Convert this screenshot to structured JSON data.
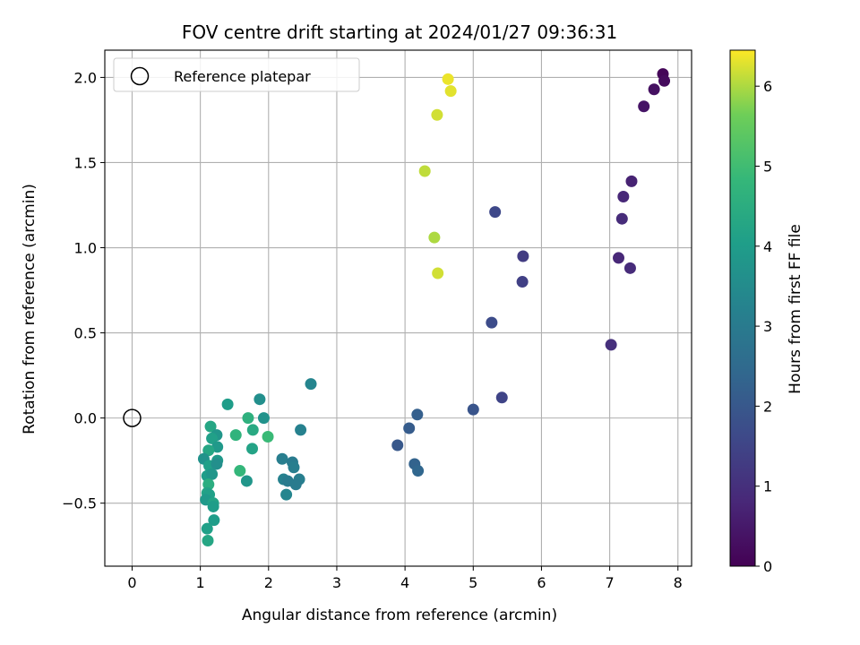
{
  "chart_data": {
    "type": "scatter",
    "title": "FOV centre drift starting at 2024/01/27 09:36:31",
    "xlabel": "Angular distance from reference (arcmin)",
    "ylabel": "Rotation from reference (arcmin)",
    "xlim": [
      -0.4,
      8.2
    ],
    "ylim": [
      -0.87,
      2.16
    ],
    "xticks": [
      0,
      1,
      2,
      3,
      4,
      5,
      6,
      7,
      8
    ],
    "xtick_labels": [
      "0",
      "1",
      "2",
      "3",
      "4",
      "5",
      "6",
      "7",
      "8"
    ],
    "yticks": [
      -0.5,
      0.0,
      0.5,
      1.0,
      1.5,
      2.0
    ],
    "ytick_labels": [
      "−0.5",
      "0.0",
      "0.5",
      "1.0",
      "1.5",
      "2.0"
    ],
    "grid": true,
    "colormap": "viridis",
    "colorbar": {
      "label": "Hours from first FF file",
      "range": [
        0,
        6.45
      ],
      "ticks": [
        0,
        1,
        2,
        3,
        4,
        5,
        6
      ],
      "tick_labels": [
        "0",
        "1",
        "2",
        "3",
        "4",
        "5",
        "6"
      ]
    },
    "legend": {
      "position": "upper-left",
      "entries": [
        "Reference platepar"
      ]
    },
    "reference_point": {
      "x": 0,
      "y": 0
    },
    "points": [
      {
        "x": 7.78,
        "y": 2.02,
        "c": 0.1
      },
      {
        "x": 7.8,
        "y": 1.98,
        "c": 0.2
      },
      {
        "x": 7.65,
        "y": 1.93,
        "c": 0.3
      },
      {
        "x": 7.5,
        "y": 1.83,
        "c": 0.4
      },
      {
        "x": 7.32,
        "y": 1.39,
        "c": 0.7
      },
      {
        "x": 7.2,
        "y": 1.3,
        "c": 0.8
      },
      {
        "x": 7.18,
        "y": 1.17,
        "c": 0.9
      },
      {
        "x": 7.13,
        "y": 0.94,
        "c": 0.8
      },
      {
        "x": 7.3,
        "y": 0.88,
        "c": 0.9
      },
      {
        "x": 7.02,
        "y": 0.43,
        "c": 1.0
      },
      {
        "x": 5.73,
        "y": 0.95,
        "c": 1.3
      },
      {
        "x": 5.72,
        "y": 0.8,
        "c": 1.4
      },
      {
        "x": 5.32,
        "y": 1.21,
        "c": 1.6
      },
      {
        "x": 5.27,
        "y": 0.56,
        "c": 1.7
      },
      {
        "x": 5.42,
        "y": 0.12,
        "c": 1.5
      },
      {
        "x": 5.0,
        "y": 0.05,
        "c": 1.9
      },
      {
        "x": 4.18,
        "y": 0.02,
        "c": 2.2
      },
      {
        "x": 4.06,
        "y": -0.06,
        "c": 2.1
      },
      {
        "x": 3.89,
        "y": -0.16,
        "c": 2.0
      },
      {
        "x": 4.14,
        "y": -0.27,
        "c": 2.3
      },
      {
        "x": 4.19,
        "y": -0.31,
        "c": 2.4
      },
      {
        "x": 2.62,
        "y": 0.2,
        "c": 3.3
      },
      {
        "x": 2.47,
        "y": -0.07,
        "c": 3.2
      },
      {
        "x": 2.2,
        "y": -0.24,
        "c": 3.1
      },
      {
        "x": 2.35,
        "y": -0.26,
        "c": 3.0
      },
      {
        "x": 2.37,
        "y": -0.29,
        "c": 3.1
      },
      {
        "x": 2.22,
        "y": -0.36,
        "c": 3.2
      },
      {
        "x": 2.28,
        "y": -0.37,
        "c": 3.0
      },
      {
        "x": 2.45,
        "y": -0.36,
        "c": 3.1
      },
      {
        "x": 2.4,
        "y": -0.39,
        "c": 3.0
      },
      {
        "x": 2.26,
        "y": -0.45,
        "c": 3.3
      },
      {
        "x": 1.87,
        "y": 0.11,
        "c": 3.6
      },
      {
        "x": 1.93,
        "y": 0.0,
        "c": 3.7
      },
      {
        "x": 1.4,
        "y": 0.08,
        "c": 4.0
      },
      {
        "x": 1.7,
        "y": 0.0,
        "c": 4.6
      },
      {
        "x": 1.77,
        "y": -0.07,
        "c": 4.4
      },
      {
        "x": 1.52,
        "y": -0.1,
        "c": 4.7
      },
      {
        "x": 1.99,
        "y": -0.11,
        "c": 4.9
      },
      {
        "x": 1.76,
        "y": -0.18,
        "c": 4.2
      },
      {
        "x": 1.68,
        "y": -0.37,
        "c": 3.8
      },
      {
        "x": 1.58,
        "y": -0.31,
        "c": 4.8
      },
      {
        "x": 1.15,
        "y": -0.05,
        "c": 4.3
      },
      {
        "x": 1.24,
        "y": -0.1,
        "c": 3.8
      },
      {
        "x": 1.17,
        "y": -0.12,
        "c": 4.1
      },
      {
        "x": 1.25,
        "y": -0.17,
        "c": 3.9
      },
      {
        "x": 1.12,
        "y": -0.19,
        "c": 4.3
      },
      {
        "x": 1.05,
        "y": -0.24,
        "c": 3.7
      },
      {
        "x": 1.25,
        "y": -0.25,
        "c": 3.9
      },
      {
        "x": 1.13,
        "y": -0.28,
        "c": 4.1
      },
      {
        "x": 1.24,
        "y": -0.27,
        "c": 3.6
      },
      {
        "x": 1.1,
        "y": -0.34,
        "c": 4.0
      },
      {
        "x": 1.17,
        "y": -0.33,
        "c": 3.8
      },
      {
        "x": 1.12,
        "y": -0.39,
        "c": 4.5
      },
      {
        "x": 1.1,
        "y": -0.44,
        "c": 4.2
      },
      {
        "x": 1.13,
        "y": -0.45,
        "c": 4.1
      },
      {
        "x": 1.08,
        "y": -0.48,
        "c": 3.9
      },
      {
        "x": 1.19,
        "y": -0.5,
        "c": 4.2
      },
      {
        "x": 1.19,
        "y": -0.52,
        "c": 4.0
      },
      {
        "x": 1.2,
        "y": -0.6,
        "c": 4.0
      },
      {
        "x": 1.1,
        "y": -0.65,
        "c": 4.1
      },
      {
        "x": 1.11,
        "y": -0.72,
        "c": 4.3
      },
      {
        "x": 4.63,
        "y": 1.99,
        "c": 6.35
      },
      {
        "x": 4.67,
        "y": 1.92,
        "c": 6.3
      },
      {
        "x": 4.47,
        "y": 1.78,
        "c": 6.2
      },
      {
        "x": 4.29,
        "y": 1.45,
        "c": 6.1
      },
      {
        "x": 4.43,
        "y": 1.06,
        "c": 6.0
      },
      {
        "x": 4.48,
        "y": 0.85,
        "c": 6.2
      }
    ]
  }
}
